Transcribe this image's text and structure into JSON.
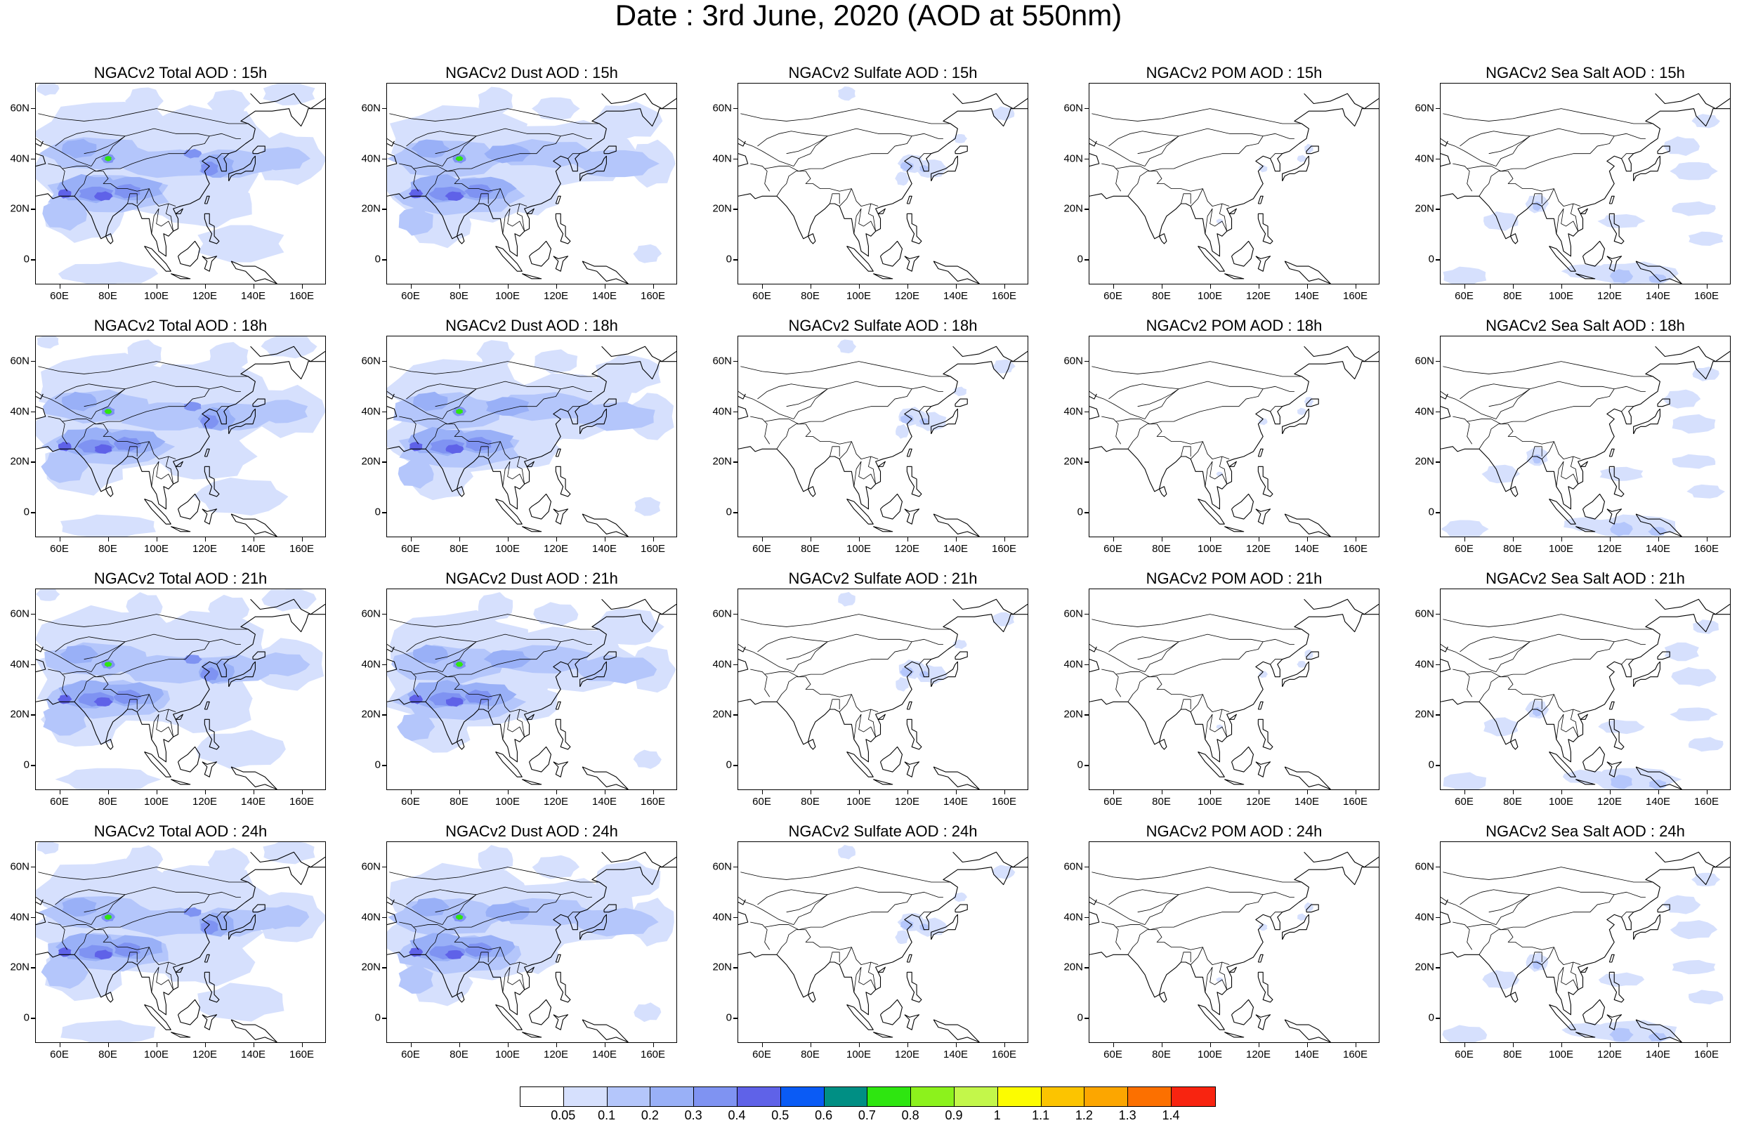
{
  "title": "Date : 3rd June, 2020 (AOD at 550nm)",
  "lat_labels": [
    "60N",
    "40N",
    "20N",
    "0"
  ],
  "lon_labels": [
    "60E",
    "80E",
    "100E",
    "120E",
    "140E",
    "160E"
  ],
  "map_extent": {
    "lon": [
      50,
      170
    ],
    "lat": [
      -10,
      70
    ]
  },
  "lat_values": [
    60,
    40,
    20,
    0
  ],
  "lon_values": [
    60,
    80,
    100,
    120,
    140,
    160
  ],
  "species": [
    "total",
    "dust",
    "sulfate",
    "pom",
    "seasalt"
  ],
  "panels": [
    [
      {
        "title": "NGACv2 Total AOD : 15h",
        "species": "total"
      },
      {
        "title": "NGACv2 Dust AOD : 15h",
        "species": "dust"
      },
      {
        "title": "NGACv2 Sulfate AOD : 15h",
        "species": "sulfate"
      },
      {
        "title": "NGACv2 POM AOD : 15h",
        "species": "pom"
      },
      {
        "title": "NGACv2 Sea Salt AOD : 15h",
        "species": "seasalt"
      }
    ],
    [
      {
        "title": "NGACv2 Total AOD : 18h",
        "species": "total"
      },
      {
        "title": "NGACv2 Dust AOD : 18h",
        "species": "dust"
      },
      {
        "title": "NGACv2 Sulfate AOD : 18h",
        "species": "sulfate"
      },
      {
        "title": "NGACv2 POM AOD : 18h",
        "species": "pom"
      },
      {
        "title": "NGACv2 Sea Salt AOD : 18h",
        "species": "seasalt"
      }
    ],
    [
      {
        "title": "NGACv2 Total AOD : 21h",
        "species": "total"
      },
      {
        "title": "NGACv2 Dust AOD : 21h",
        "species": "dust"
      },
      {
        "title": "NGACv2 Sulfate AOD : 21h",
        "species": "sulfate"
      },
      {
        "title": "NGACv2 POM AOD : 21h",
        "species": "pom"
      },
      {
        "title": "NGACv2 Sea Salt AOD : 21h",
        "species": "seasalt"
      }
    ],
    [
      {
        "title": "NGACv2 Total AOD : 24h",
        "species": "total"
      },
      {
        "title": "NGACv2 Dust AOD : 24h",
        "species": "dust"
      },
      {
        "title": "NGACv2 Sulfate AOD : 24h",
        "species": "sulfate"
      },
      {
        "title": "NGACv2 POM AOD : 24h",
        "species": "pom"
      },
      {
        "title": "NGACv2 Sea Salt  AOD : 24h",
        "species": "seasalt"
      }
    ]
  ],
  "colorbar": {
    "labels": [
      "0.05",
      "0.1",
      "0.2",
      "0.3",
      "0.4",
      "0.5",
      "0.6",
      "0.7",
      "0.8",
      "0.9",
      "1",
      "1.1",
      "1.2",
      "1.3",
      "1.4"
    ],
    "colors": [
      "#ffffff",
      "#d6e0fd",
      "#b4c6fb",
      "#99b0f7",
      "#7f93f2",
      "#5f62e8",
      "#0a5bf5",
      "#008f84",
      "#2ee610",
      "#8cf21c",
      "#c3f74a",
      "#fcfc00",
      "#fcc400",
      "#fca600",
      "#fc7000",
      "#f82410"
    ]
  },
  "palette": {
    "light": "#d6e0fd",
    "mid": "#b4c6fb",
    "blue": "#99b0f7",
    "dark": "#7f93f2",
    "darker": "#5f62e8",
    "hot": "#2ee610"
  }
}
